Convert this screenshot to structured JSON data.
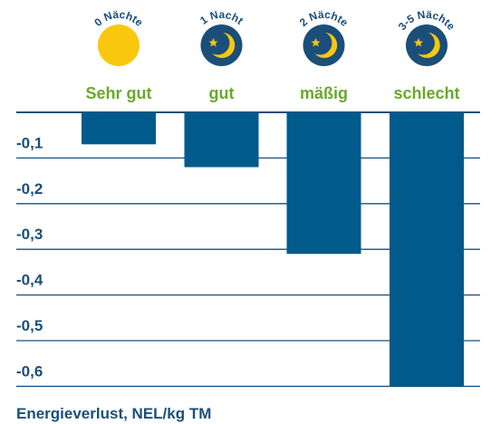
{
  "chart_data": {
    "type": "bar",
    "categories": [
      "Sehr gut",
      "gut",
      "mäßig",
      "schlecht"
    ],
    "nights": [
      "0 Nächte",
      "1 Nacht",
      "2 Nächte",
      "3-5 Nächte"
    ],
    "values": [
      -0.07,
      -0.12,
      -0.31,
      -0.6
    ],
    "color": "#005a8c",
    "category_color": "#6aa82c",
    "ylim": [
      -0.62,
      0
    ],
    "yticks": [
      {
        "value": -0.1,
        "label": "-0,1"
      },
      {
        "value": -0.2,
        "label": "-0,2"
      },
      {
        "value": -0.3,
        "label": "-0,3"
      },
      {
        "value": -0.4,
        "label": "-0,4"
      },
      {
        "value": -0.5,
        "label": "-0,5"
      },
      {
        "value": -0.6,
        "label": "-0,6"
      }
    ],
    "grid": true,
    "xlabel": "Energieverlust, NEL/kg TM"
  }
}
